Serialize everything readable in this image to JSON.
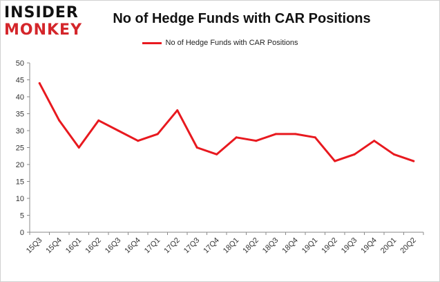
{
  "logo": {
    "line1": "INSIDER",
    "line2": "MONKEY"
  },
  "chart_data": {
    "type": "line",
    "title": "No of Hedge Funds with CAR Positions",
    "xlabel": "",
    "ylabel": "",
    "categories": [
      "15Q3",
      "15Q4",
      "16Q1",
      "16Q2",
      "16Q3",
      "16Q4",
      "17Q1",
      "17Q2",
      "17Q3",
      "17Q4",
      "18Q1",
      "18Q2",
      "18Q3",
      "18Q4",
      "19Q1",
      "19Q2",
      "19Q3",
      "19Q4",
      "20Q1",
      "20Q2"
    ],
    "series": [
      {
        "name": "No of Hedge Funds with CAR Positions",
        "color": "#e8191f",
        "values": [
          44,
          33,
          25,
          33,
          30,
          27,
          29,
          36,
          25,
          23,
          28,
          27,
          29,
          29,
          28,
          21,
          23,
          27,
          23,
          21
        ]
      }
    ],
    "ylim": [
      0,
      50
    ],
    "yticks": [
      0,
      5,
      10,
      15,
      20,
      25,
      30,
      35,
      40,
      45,
      50
    ],
    "grid": false,
    "legend_position": "top-center"
  }
}
